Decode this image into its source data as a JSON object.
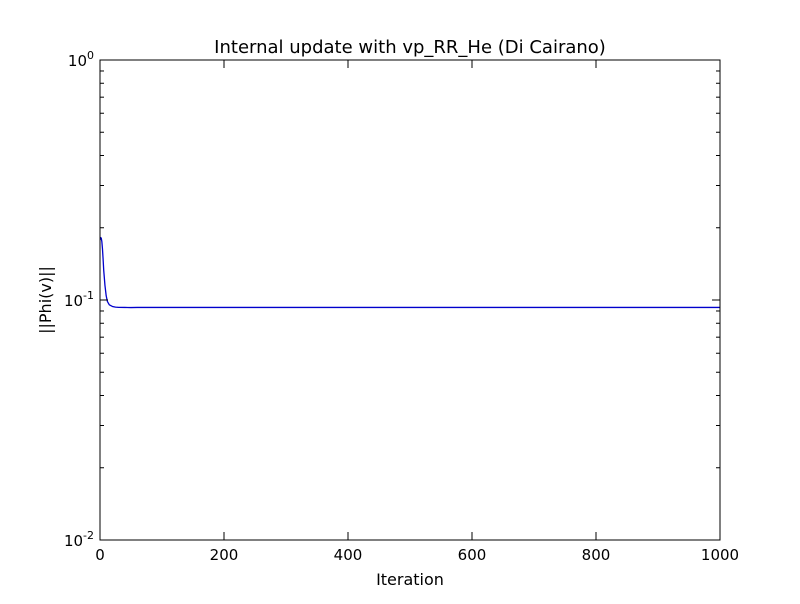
{
  "chart_data": {
    "type": "line",
    "title": "Internal update with vp_RR_He (Di Cairano)",
    "xlabel": "Iteration",
    "ylabel": "||Phi(v)||",
    "xlim": [
      0,
      1000
    ],
    "ylim": [
      0.01,
      1
    ],
    "yscale": "log",
    "grid": false,
    "x_ticks": [
      0,
      200,
      400,
      600,
      800,
      1000
    ],
    "x_tick_labels": [
      "0",
      "200",
      "400",
      "600",
      "800",
      "1000"
    ],
    "y_ticks": [
      0.01,
      0.1,
      1
    ],
    "y_tick_labels": [
      {
        "base": "10",
        "exp": "-2"
      },
      {
        "base": "10",
        "exp": "-1"
      },
      {
        "base": "10",
        "exp": "0"
      }
    ],
    "series": [
      {
        "color": "#0000cc",
        "x": [
          0,
          1,
          2,
          3,
          4,
          5,
          6,
          8,
          10,
          12,
          15,
          20,
          25,
          30,
          40,
          50,
          60,
          100,
          150,
          200,
          300,
          400,
          500,
          600,
          700,
          800,
          900,
          1000
        ],
        "y": [
          0.178,
          0.182,
          0.181,
          0.175,
          0.163,
          0.148,
          0.133,
          0.115,
          0.104,
          0.0985,
          0.0955,
          0.094,
          0.0934,
          0.0932,
          0.0931,
          0.093,
          0.0931,
          0.0931,
          0.0931,
          0.0931,
          0.0931,
          0.0931,
          0.0931,
          0.0931,
          0.0931,
          0.0931,
          0.0931,
          0.0931
        ]
      }
    ]
  }
}
